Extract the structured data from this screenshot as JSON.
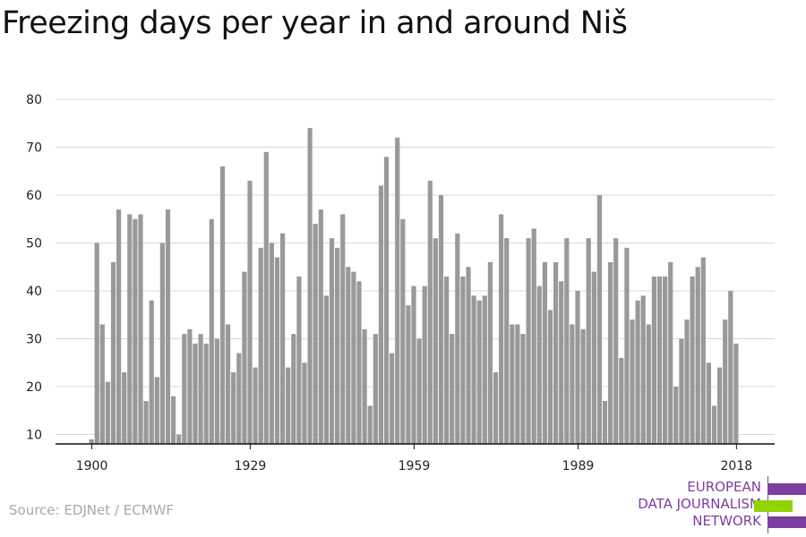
{
  "title": "Freezing days per year in and around Niš",
  "source": "Source: EDJNet / ECMWF",
  "logo": {
    "lines": [
      "EUROPEAN",
      "DATA JOURNALISM",
      "NETWORK"
    ],
    "colors": [
      "#7b3fa0",
      "#8fd400",
      "#7b3fa0"
    ]
  },
  "chart_data": {
    "type": "bar",
    "title": "Freezing days per year in and around Niš",
    "xlabel": "",
    "ylabel": "",
    "ylim": [
      8,
      80
    ],
    "yticks": [
      10,
      20,
      30,
      40,
      50,
      60,
      70,
      80
    ],
    "xticks": [
      1900,
      1929,
      1959,
      1989,
      2018
    ],
    "grid": true,
    "bar_color": "#999999",
    "x": [
      1900,
      1901,
      1902,
      1903,
      1904,
      1905,
      1906,
      1907,
      1908,
      1909,
      1910,
      1911,
      1912,
      1913,
      1914,
      1915,
      1916,
      1917,
      1918,
      1919,
      1920,
      1921,
      1922,
      1923,
      1924,
      1925,
      1926,
      1927,
      1928,
      1929,
      1930,
      1931,
      1932,
      1933,
      1934,
      1935,
      1936,
      1937,
      1938,
      1939,
      1940,
      1941,
      1942,
      1943,
      1944,
      1945,
      1946,
      1947,
      1948,
      1949,
      1950,
      1951,
      1952,
      1953,
      1954,
      1955,
      1956,
      1957,
      1958,
      1959,
      1960,
      1961,
      1962,
      1963,
      1964,
      1965,
      1966,
      1967,
      1968,
      1969,
      1970,
      1971,
      1972,
      1973,
      1974,
      1975,
      1976,
      1977,
      1978,
      1979,
      1980,
      1981,
      1982,
      1983,
      1984,
      1985,
      1986,
      1987,
      1988,
      1989,
      1990,
      1991,
      1992,
      1993,
      1994,
      1995,
      1996,
      1997,
      1998,
      1999,
      2000,
      2001,
      2002,
      2003,
      2004,
      2005,
      2006,
      2007,
      2008,
      2009,
      2010,
      2011,
      2012,
      2013,
      2014,
      2015,
      2016,
      2017,
      2018
    ],
    "values": [
      9,
      50,
      33,
      21,
      46,
      57,
      23,
      56,
      55,
      56,
      17,
      38,
      22,
      50,
      57,
      18,
      10,
      31,
      32,
      29,
      31,
      29,
      55,
      30,
      66,
      33,
      23,
      27,
      44,
      63,
      24,
      49,
      69,
      50,
      47,
      52,
      24,
      31,
      43,
      25,
      74,
      54,
      57,
      39,
      51,
      49,
      56,
      45,
      44,
      42,
      32,
      16,
      31,
      62,
      68,
      27,
      72,
      55,
      37,
      41,
      30,
      41,
      63,
      51,
      60,
      43,
      31,
      52,
      43,
      45,
      39,
      38,
      39,
      46,
      23,
      56,
      51,
      33,
      33,
      31,
      51,
      53,
      41,
      46,
      36,
      46,
      42,
      51,
      33,
      40,
      32,
      51,
      44,
      60,
      17,
      46,
      51,
      26,
      49,
      34,
      38,
      39,
      33,
      43,
      43,
      43,
      46,
      20,
      30,
      34,
      43,
      45,
      47,
      25,
      16,
      24,
      34,
      40,
      29
    ]
  }
}
